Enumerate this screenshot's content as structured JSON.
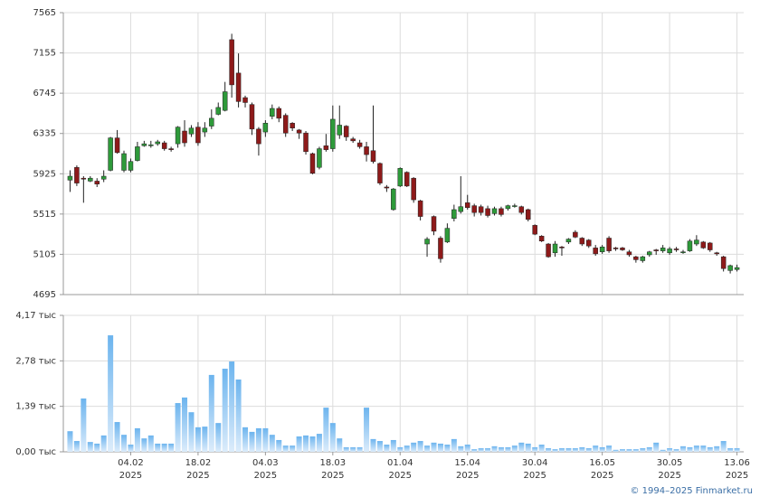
{
  "chart_data": [
    {
      "type": "candlestick",
      "up_color": "#2e9a3a",
      "down_color": "#8e1a1a",
      "grid": true,
      "ylim": [
        4695,
        7565
      ],
      "yticks": [
        4695,
        5105,
        5515,
        5925,
        6335,
        6745,
        7155,
        7565
      ],
      "open": [
        5860,
        5990,
        5880,
        5850,
        5850,
        5870,
        5960,
        6290,
        5960,
        5960,
        6060,
        6210,
        6210,
        6230,
        6240,
        6180,
        6230,
        6360,
        6330,
        6400,
        6350,
        6410,
        6530,
        6570,
        7290,
        6950,
        6700,
        6630,
        6380,
        6350,
        6510,
        6590,
        6520,
        6440,
        6370,
        6340,
        6130,
        5990,
        6210,
        6180,
        6320,
        6410,
        6280,
        6240,
        6200,
        6160,
        6030,
        5790,
        5560,
        5800,
        5940,
        5880,
        5650,
        5210,
        5490,
        5270,
        5230,
        5470,
        5540,
        5630,
        5600,
        5590,
        5570,
        5520,
        5570,
        5570,
        5600,
        5590,
        5560,
        5400,
        5290,
        5210,
        5120,
        5180,
        5230,
        5330,
        5270,
        5250,
        5170,
        5130,
        5270,
        5170,
        5170,
        5130,
        5080,
        5040,
        5100,
        5150,
        5140,
        5120,
        5160,
        5130,
        5140,
        5210,
        5230,
        5220,
        5120,
        5080,
        4940,
        4950
      ],
      "high": [
        5960,
        6010,
        5900,
        5900,
        5880,
        5960,
        6300,
        6370,
        6160,
        6080,
        6250,
        6260,
        6260,
        6270,
        6260,
        6200,
        6410,
        6470,
        6420,
        6450,
        6450,
        6580,
        6650,
        6860,
        7350,
        7150,
        6720,
        6650,
        6400,
        6470,
        6630,
        6610,
        6540,
        6450,
        6380,
        6360,
        6140,
        6200,
        6330,
        6620,
        6620,
        6420,
        6300,
        6270,
        6250,
        6620,
        6040,
        5810,
        5780,
        5990,
        5950,
        5890,
        5660,
        5280,
        5500,
        5290,
        5420,
        5610,
        5900,
        5710,
        5620,
        5610,
        5600,
        5590,
        5590,
        5610,
        5620,
        5600,
        5570,
        5410,
        5300,
        5220,
        5240,
        5190,
        5270,
        5350,
        5280,
        5260,
        5200,
        5200,
        5290,
        5180,
        5180,
        5150,
        5090,
        5090,
        5140,
        5160,
        5200,
        5180,
        5180,
        5150,
        5260,
        5300,
        5240,
        5230,
        5130,
        5090,
        5000,
        5000
      ],
      "low": [
        5740,
        5800,
        5630,
        5840,
        5790,
        5840,
        5950,
        6130,
        5940,
        5940,
        6050,
        6200,
        6190,
        6210,
        6160,
        6150,
        6190,
        6200,
        6300,
        6210,
        6300,
        6380,
        6520,
        6560,
        6700,
        6600,
        6600,
        6320,
        6110,
        6300,
        6480,
        6450,
        6300,
        6360,
        6280,
        6120,
        5920,
        5970,
        6150,
        6150,
        6280,
        6260,
        6240,
        6180,
        6050,
        6030,
        5810,
        5740,
        5550,
        5790,
        5790,
        5630,
        5450,
        5080,
        5300,
        5020,
        5220,
        5440,
        5520,
        5560,
        5490,
        5500,
        5480,
        5500,
        5490,
        5550,
        5580,
        5510,
        5440,
        5300,
        5230,
        5070,
        5080,
        5090,
        5210,
        5270,
        5190,
        5170,
        5090,
        5110,
        5120,
        5140,
        5140,
        5080,
        5020,
        5020,
        5080,
        5100,
        5120,
        5100,
        5130,
        5110,
        5130,
        5190,
        5160,
        5130,
        5090,
        4930,
        4910,
        4930
      ],
      "close": [
        5900,
        5830,
        5870,
        5880,
        5820,
        5900,
        6290,
        6140,
        6130,
        6050,
        6200,
        6230,
        6220,
        6250,
        6180,
        6170,
        6400,
        6240,
        6390,
        6240,
        6390,
        6490,
        6600,
        6760,
        6830,
        6660,
        6650,
        6380,
        6230,
        6440,
        6590,
        6490,
        6340,
        6390,
        6340,
        6150,
        5930,
        6180,
        6170,
        6480,
        6420,
        6300,
        6260,
        6200,
        6120,
        6050,
        5830,
        5780,
        5770,
        5980,
        5800,
        5660,
        5490,
        5260,
        5340,
        5060,
        5370,
        5560,
        5590,
        5580,
        5530,
        5530,
        5500,
        5570,
        5510,
        5600,
        5600,
        5530,
        5460,
        5310,
        5240,
        5080,
        5210,
        5170,
        5260,
        5280,
        5210,
        5190,
        5110,
        5180,
        5140,
        5160,
        5150,
        5100,
        5050,
        5080,
        5130,
        5140,
        5170,
        5160,
        5150,
        5130,
        5240,
        5250,
        5170,
        5150,
        5110,
        4960,
        4990,
        4970
      ]
    },
    {
      "type": "bar",
      "color": "#6cb4ee",
      "gradient_to": "#dcecfb",
      "grid": true,
      "ylim": [
        0,
        4170
      ],
      "yticks": [
        {
          "value": 0,
          "label": "0,00 тыс"
        },
        {
          "value": 1390,
          "label": "1,39 тыс"
        },
        {
          "value": 2780,
          "label": "2,78 тыс"
        },
        {
          "value": 4170,
          "label": "4,17 тыс"
        }
      ],
      "values": [
        630,
        330,
        1630,
        300,
        250,
        500,
        3560,
        910,
        520,
        220,
        720,
        410,
        500,
        250,
        250,
        250,
        1490,
        1660,
        1210,
        750,
        770,
        2350,
        880,
        2540,
        2760,
        2210,
        750,
        610,
        720,
        720,
        520,
        360,
        190,
        190,
        470,
        500,
        470,
        550,
        1350,
        880,
        410,
        140,
        140,
        140,
        1350,
        390,
        330,
        220,
        360,
        140,
        190,
        280,
        330,
        190,
        280,
        250,
        220,
        390,
        170,
        220,
        80,
        110,
        110,
        170,
        140,
        140,
        190,
        280,
        250,
        140,
        220,
        110,
        80,
        110,
        110,
        110,
        140,
        110,
        190,
        140,
        190,
        60,
        80,
        80,
        80,
        110,
        140,
        280,
        60,
        110,
        80,
        170,
        140,
        190,
        190,
        140,
        170,
        330,
        110,
        110
      ],
      "categories": [
        null,
        null,
        null,
        null,
        null,
        null,
        null,
        null,
        null,
        {
          "date": "04.02",
          "year": "2025"
        },
        null,
        null,
        null,
        null,
        null,
        null,
        null,
        null,
        null,
        {
          "date": "18.02",
          "year": "2025"
        },
        null,
        null,
        null,
        null,
        null,
        null,
        null,
        null,
        null,
        {
          "date": "04.03",
          "year": "2025"
        },
        null,
        null,
        null,
        null,
        null,
        null,
        null,
        null,
        null,
        {
          "date": "18.03",
          "year": "2025"
        },
        null,
        null,
        null,
        null,
        null,
        null,
        null,
        null,
        null,
        {
          "date": "01.04",
          "year": "2025"
        },
        null,
        null,
        null,
        null,
        null,
        null,
        null,
        null,
        null,
        {
          "date": "15.04",
          "year": "2025"
        },
        null,
        null,
        null,
        null,
        null,
        null,
        null,
        null,
        null,
        {
          "date": "30.04",
          "year": "2025"
        },
        null,
        null,
        null,
        null,
        null,
        null,
        null,
        null,
        null,
        {
          "date": "16.05",
          "year": "2025"
        },
        null,
        null,
        null,
        null,
        null,
        null,
        null,
        null,
        null,
        {
          "date": "30.05",
          "year": "2025"
        },
        null,
        null,
        null,
        null,
        null,
        null,
        null,
        null,
        null,
        {
          "date": "13.06",
          "year": "2025"
        }
      ],
      "credit": "© 1994–2025 Finmarket.ru"
    }
  ]
}
